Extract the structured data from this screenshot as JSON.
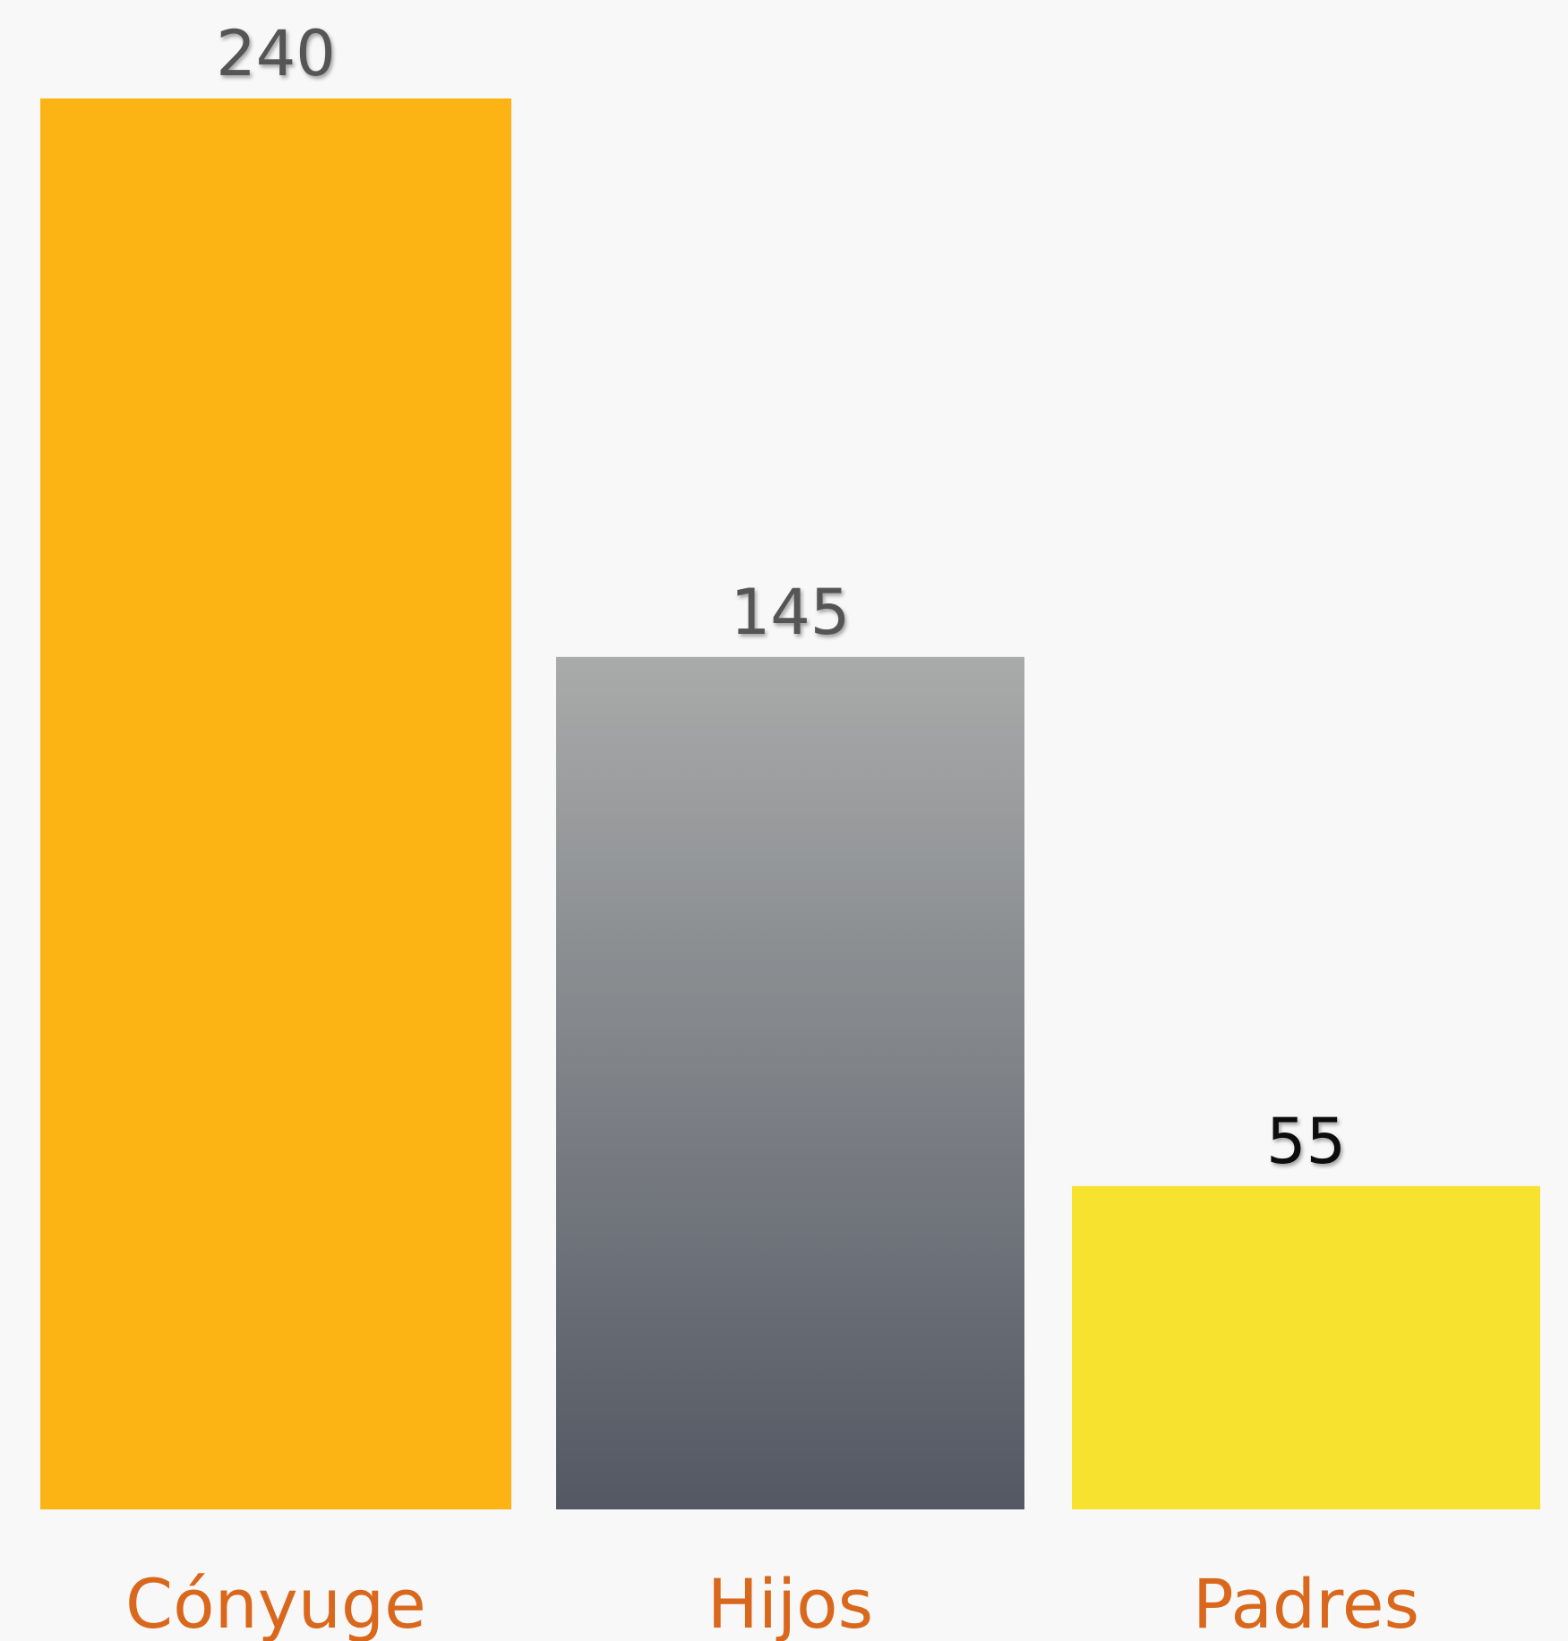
{
  "chart_data": {
    "type": "bar",
    "categories": [
      "Cónyuge",
      "Hijos",
      "Padres"
    ],
    "values": [
      240,
      145,
      55
    ],
    "data_labels": [
      "240",
      "145",
      "55"
    ],
    "title": "",
    "xlabel": "",
    "ylabel": "",
    "ylim": [
      0,
      240
    ],
    "grid": false,
    "legend": "none",
    "bar_colors": [
      {
        "fill": "#fbb413"
      },
      {
        "gradient_top": "#a9abaa",
        "gradient_bottom": "#535863"
      },
      {
        "fill": "#f7e32f"
      }
    ],
    "label_colors": [
      "#555555",
      "#555555",
      "#111111"
    ],
    "category_label_color": "#d9681c",
    "background": "#f8f8f8"
  }
}
